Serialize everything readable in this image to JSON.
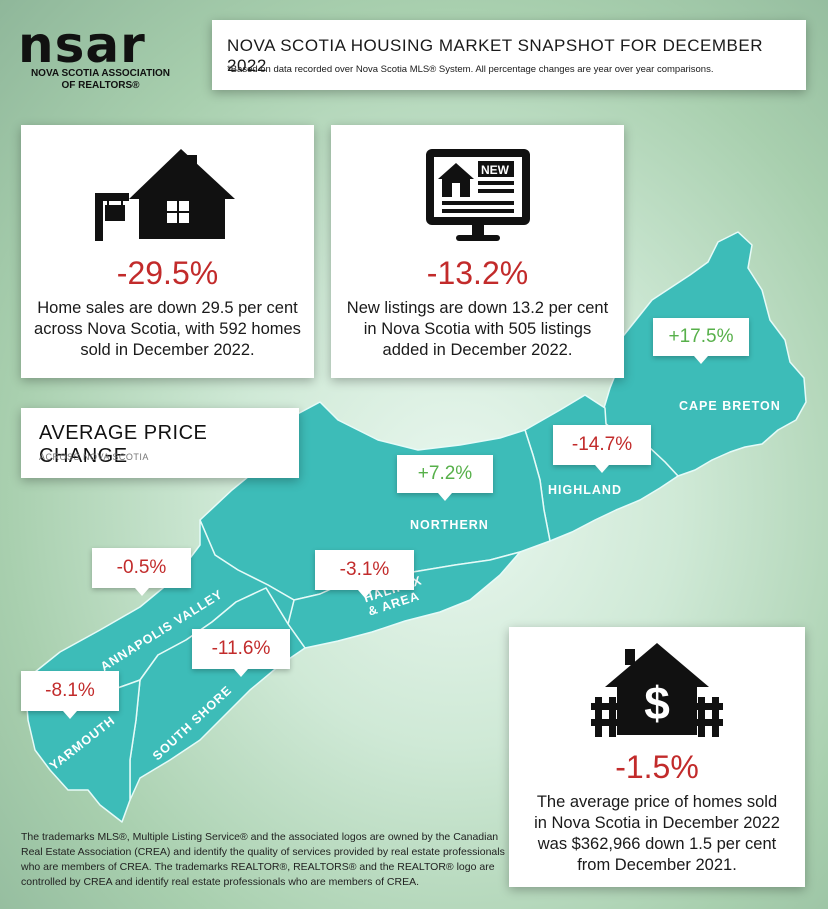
{
  "logo": {
    "wordmark": "nsar",
    "line1": "NOVA SCOTIA ASSOCIATION",
    "line2": "OF REALTORS®"
  },
  "header": {
    "title": "NOVA SCOTIA HOUSING MARKET SNAPSHOT FOR DECEMBER 2022",
    "subtitle": "*Based on data recorded over Nova Scotia MLS® System. All percentage changes are year over year comparisons."
  },
  "sales": {
    "icon": "house-for-sale-icon",
    "stat": "-29.5%",
    "lines": [
      "Home sales are down 29.5 per cent",
      "across Nova Scotia, with 592 homes",
      "sold in December 2022."
    ]
  },
  "listings": {
    "icon": "new-listing-monitor-icon",
    "screen_label": "NEW",
    "stat": "-13.2%",
    "lines": [
      "New listings are down 13.2 per cent",
      "in Nova Scotia with 505 listings",
      "added in December 2022."
    ]
  },
  "avg_price_header": {
    "title": "AVERAGE PRICE CHANGE",
    "subtitle": "ACROSS NOVA SCOTIA"
  },
  "regions": {
    "cape_breton": {
      "name": "CAPE BRETON",
      "change": "+17.5%"
    },
    "highland": {
      "name": "HIGHLAND",
      "change": "-14.7%"
    },
    "northern": {
      "name": "NORTHERN",
      "change": "+7.2%"
    },
    "halifax": {
      "name_line1": "HALIFAX",
      "name_line2": "& AREA",
      "change": "-3.1%"
    },
    "annapolis": {
      "name": "ANNAPOLIS VALLEY",
      "change": "-0.5%"
    },
    "south_shore": {
      "name": "SOUTH SHORE",
      "change": "-11.6%"
    },
    "yarmouth": {
      "name": "YARMOUTH",
      "change": "-8.1%"
    }
  },
  "avg_price": {
    "icon": "house-dollar-icon",
    "stat": "-1.5%",
    "lines": [
      "The average price of homes sold",
      "in Nova Scotia in December 2022",
      "was $362,966 down 1.5 per cent",
      "from December 2021."
    ]
  },
  "footer": {
    "lines": [
      "The trademarks MLS®, Multiple Listing Service® and the associated logos are owned by the Canadian",
      "Real Estate Association (CREA) and identify the quality of services provided by real estate professionals",
      "who are members of CREA. The trademarks REALTOR®, REALTORS® and the REALTOR® logo are",
      "controlled by CREA and identify real estate professionals who are members of CREA."
    ]
  },
  "colors": {
    "map": "#3dbcb8",
    "map_border": "#e6fbf8",
    "negative": "#c22b2b",
    "positive": "#57b04a",
    "text": "#1a1a1a"
  }
}
